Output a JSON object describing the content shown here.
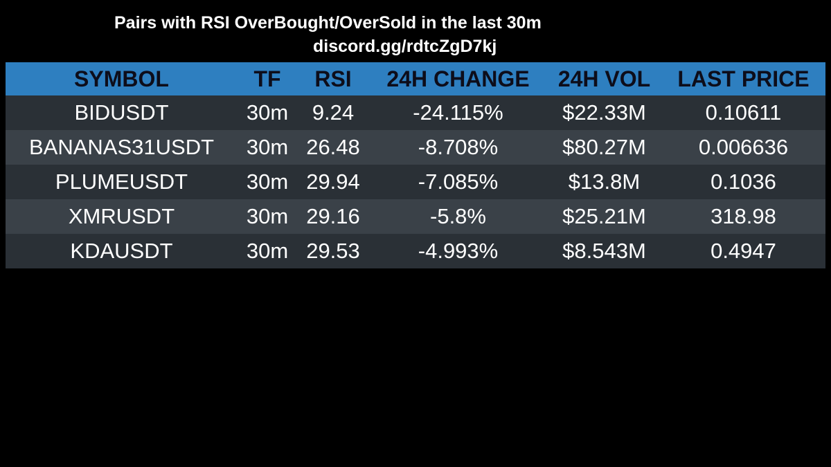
{
  "header": {
    "title": "Pairs with RSI OverBought/OverSold in the last 30m",
    "subtitle": "discord.gg/rdtcZgD7kj"
  },
  "colors": {
    "background": "#000000",
    "header_row": "#2e7fc0",
    "row_dark": "#2a3036",
    "row_light": "#3a4148",
    "text": "#ffffff"
  },
  "table": {
    "columns": [
      "SYMBOL",
      "TF",
      "RSI",
      "24H CHANGE",
      "24H VOL",
      "LAST PRICE"
    ],
    "rows": [
      [
        "BIDUSDT",
        "30m",
        "9.24",
        "-24.115%",
        "$22.33M",
        "0.10611"
      ],
      [
        "BANANAS31USDT",
        "30m",
        "26.48",
        "-8.708%",
        "$80.27M",
        "0.006636"
      ],
      [
        "PLUMEUSDT",
        "30m",
        "29.94",
        "-7.085%",
        "$13.8M",
        "0.1036"
      ],
      [
        "XMRUSDT",
        "30m",
        "29.16",
        "-5.8%",
        "$25.21M",
        "318.98"
      ],
      [
        "KDAUSDT",
        "30m",
        "29.53",
        "-4.993%",
        "$8.543M",
        "0.4947"
      ]
    ]
  }
}
